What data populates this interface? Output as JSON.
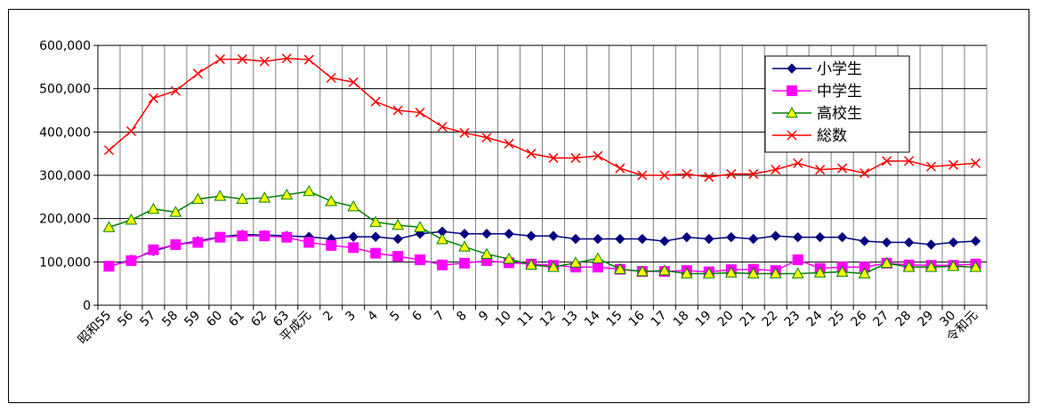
{
  "chart_data": {
    "type": "line",
    "title": "",
    "xlabel": "",
    "ylabel": "",
    "ylim": [
      0,
      600000
    ],
    "yticks": [
      0,
      100000,
      200000,
      300000,
      400000,
      500000,
      600000
    ],
    "ytick_labels": [
      "0",
      "100,000",
      "200,000",
      "300,000",
      "400,000",
      "500,000",
      "600,000"
    ],
    "categories": [
      "昭和55",
      "56",
      "57",
      "58",
      "59",
      "60",
      "61",
      "62",
      "63",
      "平成元",
      "2",
      "3",
      "4",
      "5",
      "6",
      "7",
      "8",
      "9",
      "10",
      "11",
      "12",
      "13",
      "14",
      "15",
      "16",
      "17",
      "18",
      "19",
      "20",
      "21",
      "22",
      "23",
      "24",
      "25",
      "26",
      "27",
      "28",
      "29",
      "30",
      "令和元"
    ],
    "grid": true,
    "legend_position": "top-right",
    "series": [
      {
        "name": "小学生",
        "color": "#000080",
        "marker": "diamond",
        "values": [
          90000,
          105000,
          125000,
          140000,
          148000,
          158000,
          163000,
          162000,
          160000,
          158000,
          153000,
          158000,
          158000,
          153000,
          165000,
          170000,
          165000,
          165000,
          165000,
          160000,
          160000,
          153000,
          153000,
          153000,
          153000,
          148000,
          157000,
          153000,
          157000,
          153000,
          160000,
          157000,
          157000,
          157000,
          148000,
          145000,
          145000,
          140000,
          145000,
          148000
        ]
      },
      {
        "name": "中学生",
        "color": "#ff00ff",
        "marker": "square",
        "values": [
          90000,
          103000,
          128000,
          140000,
          145000,
          157000,
          160000,
          160000,
          157000,
          145000,
          138000,
          133000,
          120000,
          113000,
          105000,
          93000,
          97000,
          103000,
          98000,
          95000,
          92000,
          88000,
          88000,
          83000,
          78000,
          78000,
          80000,
          77000,
          82000,
          83000,
          80000,
          105000,
          85000,
          88000,
          88000,
          97000,
          93000,
          92000,
          92000,
          95000
        ]
      },
      {
        "name": "高校生",
        "color": "#008000",
        "marker": "triangle",
        "marker_fill": "#ffff00",
        "values": [
          180000,
          197000,
          222000,
          215000,
          245000,
          252000,
          245000,
          248000,
          255000,
          263000,
          240000,
          228000,
          192000,
          185000,
          180000,
          152000,
          135000,
          118000,
          107000,
          93000,
          88000,
          98000,
          108000,
          83000,
          78000,
          80000,
          73000,
          73000,
          75000,
          73000,
          73000,
          73000,
          75000,
          77000,
          73000,
          97000,
          88000,
          88000,
          90000,
          88000
        ]
      },
      {
        "name": "総数",
        "color": "#ff0000",
        "marker": "x",
        "values": [
          358000,
          402000,
          478000,
          495000,
          535000,
          568000,
          568000,
          563000,
          570000,
          567000,
          525000,
          515000,
          470000,
          450000,
          445000,
          412000,
          398000,
          387000,
          373000,
          350000,
          340000,
          340000,
          345000,
          316000,
          300000,
          300000,
          303000,
          296000,
          303000,
          303000,
          313000,
          328000,
          313000,
          316000,
          305000,
          333000,
          333000,
          320000,
          324000,
          328000
        ]
      }
    ]
  }
}
